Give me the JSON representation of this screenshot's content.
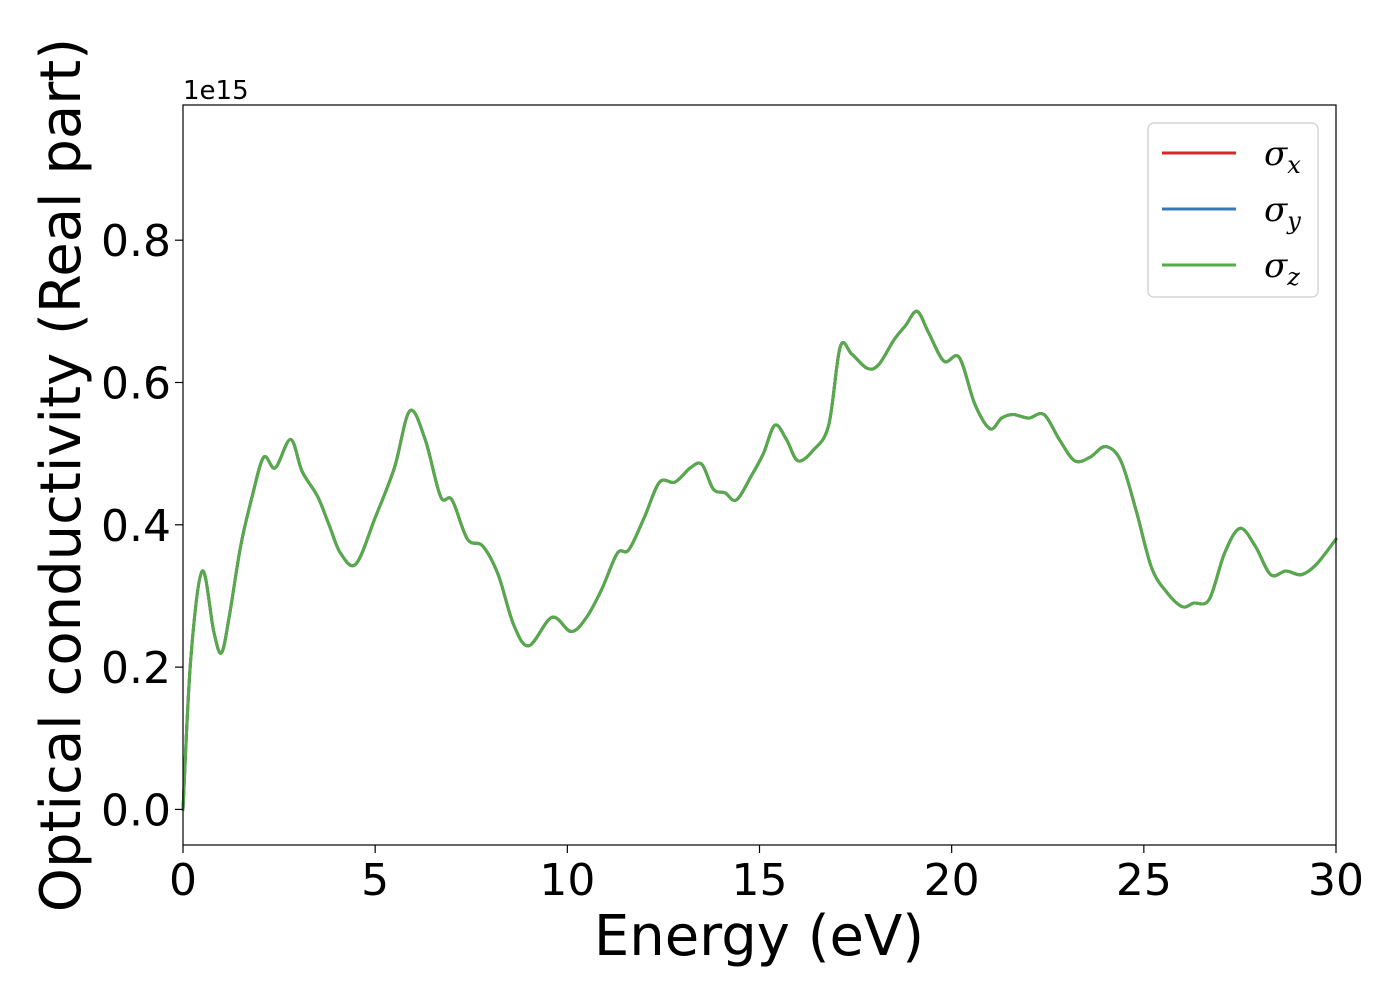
{
  "chart_data": {
    "type": "line",
    "title": "",
    "xlabel": "Energy (eV)",
    "ylabel": "Optical conductivity (Real part)",
    "y_offset_label": "1e15",
    "xlim": [
      0,
      30
    ],
    "ylim": [
      -0.05,
      0.99
    ],
    "x_ticks": [
      0,
      5,
      10,
      15,
      20,
      25,
      30
    ],
    "x_tick_labels": [
      "0",
      "5",
      "10",
      "15",
      "20",
      "25",
      "30"
    ],
    "y_ticks": [
      0.0,
      0.2,
      0.4,
      0.6,
      0.8
    ],
    "y_tick_labels": [
      "0.0",
      "0.2",
      "0.4",
      "0.6",
      "0.8"
    ],
    "grid": false,
    "legend_position": "top-right",
    "x": [
      0.0,
      0.2,
      0.5,
      0.8,
      1.0,
      1.2,
      1.5,
      1.8,
      2.1,
      2.4,
      2.8,
      3.1,
      3.5,
      3.8,
      4.1,
      4.5,
      5.0,
      5.5,
      5.9,
      6.3,
      6.7,
      7.0,
      7.4,
      7.8,
      8.2,
      8.6,
      9.0,
      9.6,
      10.1,
      10.5,
      10.9,
      11.3,
      11.6,
      12.0,
      12.4,
      12.8,
      13.2,
      13.5,
      13.8,
      14.1,
      14.4,
      14.8,
      15.1,
      15.4,
      15.7,
      16.0,
      16.4,
      16.8,
      17.1,
      17.4,
      17.8,
      18.1,
      18.5,
      18.8,
      19.1,
      19.4,
      19.8,
      20.2,
      20.6,
      21.0,
      21.3,
      21.6,
      22.0,
      22.4,
      22.8,
      23.2,
      23.6,
      24.0,
      24.4,
      24.8,
      25.2,
      25.6,
      26.0,
      26.3,
      26.7,
      27.1,
      27.5,
      27.9,
      28.3,
      28.7,
      29.1,
      29.5,
      30.0
    ],
    "series": [
      {
        "name": "x",
        "color": "#d62728",
        "values": [
          0.0,
          0.21,
          0.335,
          0.25,
          0.22,
          0.27,
          0.37,
          0.44,
          0.495,
          0.48,
          0.52,
          0.475,
          0.44,
          0.4,
          0.36,
          0.345,
          0.41,
          0.48,
          0.56,
          0.52,
          0.44,
          0.435,
          0.38,
          0.37,
          0.33,
          0.26,
          0.23,
          0.27,
          0.25,
          0.27,
          0.31,
          0.36,
          0.365,
          0.41,
          0.46,
          0.46,
          0.48,
          0.485,
          0.45,
          0.445,
          0.435,
          0.47,
          0.5,
          0.54,
          0.52,
          0.49,
          0.505,
          0.54,
          0.65,
          0.64,
          0.62,
          0.625,
          0.66,
          0.68,
          0.7,
          0.67,
          0.63,
          0.635,
          0.57,
          0.535,
          0.55,
          0.555,
          0.55,
          0.555,
          0.52,
          0.49,
          0.495,
          0.51,
          0.49,
          0.42,
          0.34,
          0.305,
          0.285,
          0.29,
          0.295,
          0.36,
          0.395,
          0.37,
          0.33,
          0.335,
          0.33,
          0.345,
          0.38
        ]
      },
      {
        "name": "y",
        "color": "#3878b4",
        "values": [
          0.0,
          0.21,
          0.335,
          0.25,
          0.22,
          0.27,
          0.37,
          0.44,
          0.495,
          0.48,
          0.52,
          0.475,
          0.44,
          0.4,
          0.36,
          0.345,
          0.41,
          0.48,
          0.56,
          0.52,
          0.44,
          0.435,
          0.38,
          0.37,
          0.33,
          0.26,
          0.23,
          0.27,
          0.25,
          0.27,
          0.31,
          0.36,
          0.365,
          0.41,
          0.46,
          0.46,
          0.48,
          0.485,
          0.45,
          0.445,
          0.435,
          0.47,
          0.5,
          0.54,
          0.52,
          0.49,
          0.505,
          0.54,
          0.65,
          0.64,
          0.62,
          0.625,
          0.66,
          0.68,
          0.7,
          0.67,
          0.63,
          0.635,
          0.57,
          0.535,
          0.55,
          0.555,
          0.55,
          0.555,
          0.52,
          0.49,
          0.495,
          0.51,
          0.49,
          0.42,
          0.34,
          0.305,
          0.285,
          0.29,
          0.295,
          0.36,
          0.395,
          0.37,
          0.33,
          0.335,
          0.33,
          0.345,
          0.38
        ]
      },
      {
        "name": "z",
        "color": "#56aa4a",
        "values": [
          0.0,
          0.21,
          0.335,
          0.25,
          0.22,
          0.27,
          0.37,
          0.44,
          0.495,
          0.48,
          0.52,
          0.475,
          0.44,
          0.4,
          0.36,
          0.345,
          0.41,
          0.48,
          0.56,
          0.52,
          0.44,
          0.435,
          0.38,
          0.37,
          0.33,
          0.26,
          0.23,
          0.27,
          0.25,
          0.27,
          0.31,
          0.36,
          0.365,
          0.41,
          0.46,
          0.46,
          0.48,
          0.485,
          0.45,
          0.445,
          0.435,
          0.47,
          0.5,
          0.54,
          0.52,
          0.49,
          0.505,
          0.54,
          0.65,
          0.64,
          0.62,
          0.625,
          0.66,
          0.68,
          0.7,
          0.67,
          0.63,
          0.635,
          0.57,
          0.535,
          0.55,
          0.555,
          0.55,
          0.555,
          0.52,
          0.49,
          0.495,
          0.51,
          0.49,
          0.42,
          0.34,
          0.305,
          0.285,
          0.29,
          0.295,
          0.36,
          0.395,
          0.37,
          0.33,
          0.335,
          0.33,
          0.345,
          0.38
        ]
      }
    ],
    "legend": [
      {
        "symbol": "σ",
        "sub": "x"
      },
      {
        "symbol": "σ",
        "sub": "y"
      },
      {
        "symbol": "σ",
        "sub": "z"
      }
    ]
  }
}
